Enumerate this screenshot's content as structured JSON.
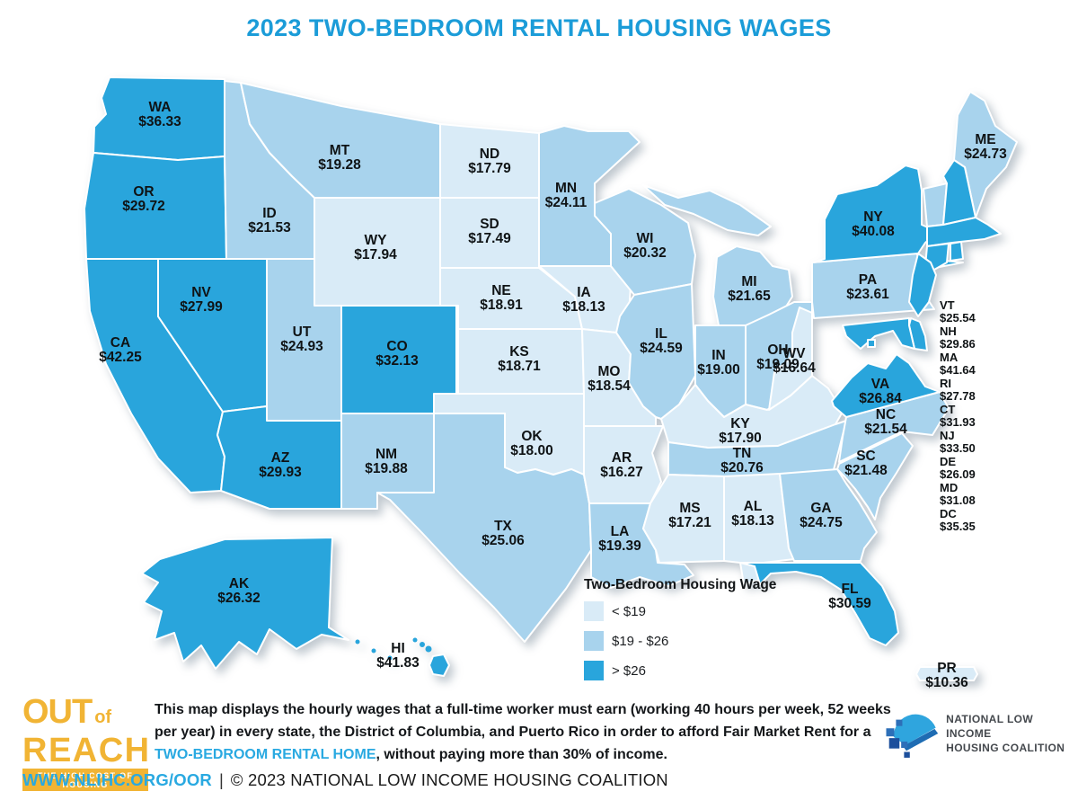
{
  "title": "2023 TWO-BEDROOM RENTAL HOUSING WAGES",
  "colors": {
    "accent_blue": "#1B9CD8",
    "link_blue": "#29A9E1",
    "brand_yellow": "#F1B434",
    "text_dark": "#14171A",
    "nlihc_sky": "#2FA5DE",
    "nlihc_mid_blue": "#2D6FB8",
    "nlihc_navy": "#1C4F9C",
    "nlihc_roof": "#1E6CB3"
  },
  "legend": {
    "title": "Two-Bedroom Housing Wage",
    "classes": [
      {
        "id": "light",
        "label": "< $19",
        "color": "#D9EBF7"
      },
      {
        "id": "medium",
        "label": "$19 - $26",
        "color": "#A8D3ED"
      },
      {
        "id": "dark",
        "label": "> $26",
        "color": "#29A5DC"
      }
    ]
  },
  "map": {
    "states": [
      {
        "abbr": "WA",
        "value": "$36.33",
        "category": "dark"
      },
      {
        "abbr": "OR",
        "value": "$29.72",
        "category": "dark"
      },
      {
        "abbr": "CA",
        "value": "$42.25",
        "category": "dark"
      },
      {
        "abbr": "NV",
        "value": "$27.99",
        "category": "dark"
      },
      {
        "abbr": "ID",
        "value": "$21.53",
        "category": "medium"
      },
      {
        "abbr": "MT",
        "value": "$19.28",
        "category": "medium"
      },
      {
        "abbr": "WY",
        "value": "$17.94",
        "category": "light"
      },
      {
        "abbr": "UT",
        "value": "$24.93",
        "category": "medium"
      },
      {
        "abbr": "CO",
        "value": "$32.13",
        "category": "dark"
      },
      {
        "abbr": "AZ",
        "value": "$29.93",
        "category": "dark"
      },
      {
        "abbr": "NM",
        "value": "$19.88",
        "category": "medium"
      },
      {
        "abbr": "ND",
        "value": "$17.79",
        "category": "light"
      },
      {
        "abbr": "SD",
        "value": "$17.49",
        "category": "light"
      },
      {
        "abbr": "NE",
        "value": "$18.91",
        "category": "light"
      },
      {
        "abbr": "KS",
        "value": "$18.71",
        "category": "light"
      },
      {
        "abbr": "OK",
        "value": "$18.00",
        "category": "light"
      },
      {
        "abbr": "TX",
        "value": "$25.06",
        "category": "medium"
      },
      {
        "abbr": "MN",
        "value": "$24.11",
        "category": "medium"
      },
      {
        "abbr": "IA",
        "value": "$18.13",
        "category": "light"
      },
      {
        "abbr": "MO",
        "value": "$18.54",
        "category": "light"
      },
      {
        "abbr": "AR",
        "value": "$16.27",
        "category": "light"
      },
      {
        "abbr": "LA",
        "value": "$19.39",
        "category": "medium"
      },
      {
        "abbr": "WI",
        "value": "$20.32",
        "category": "medium"
      },
      {
        "abbr": "IL",
        "value": "$24.59",
        "category": "medium"
      },
      {
        "abbr": "MI",
        "value": "$21.65",
        "category": "medium"
      },
      {
        "abbr": "IN",
        "value": "$19.00",
        "category": "medium"
      },
      {
        "abbr": "OH",
        "value": "$19.09",
        "category": "medium"
      },
      {
        "abbr": "KY",
        "value": "$17.90",
        "category": "light"
      },
      {
        "abbr": "TN",
        "value": "$20.76",
        "category": "medium"
      },
      {
        "abbr": "MS",
        "value": "$17.21",
        "category": "light"
      },
      {
        "abbr": "AL",
        "value": "$18.13",
        "category": "light"
      },
      {
        "abbr": "GA",
        "value": "$24.75",
        "category": "medium"
      },
      {
        "abbr": "FL",
        "value": "$30.59",
        "category": "dark"
      },
      {
        "abbr": "SC",
        "value": "$21.48",
        "category": "medium"
      },
      {
        "abbr": "NC",
        "value": "$21.54",
        "category": "medium"
      },
      {
        "abbr": "VA",
        "value": "$26.84",
        "category": "dark"
      },
      {
        "abbr": "WV",
        "value": "$16.64",
        "category": "light"
      },
      {
        "abbr": "PA",
        "value": "$23.61",
        "category": "medium"
      },
      {
        "abbr": "NY",
        "value": "$40.08",
        "category": "dark"
      },
      {
        "abbr": "ME",
        "value": "$24.73",
        "category": "medium"
      },
      {
        "abbr": "VT",
        "value": "$25.54",
        "category": "medium"
      },
      {
        "abbr": "NH",
        "value": "$29.86",
        "category": "dark"
      },
      {
        "abbr": "MA",
        "value": "$41.64",
        "category": "dark"
      },
      {
        "abbr": "RI",
        "value": "$27.78",
        "category": "dark"
      },
      {
        "abbr": "CT",
        "value": "$31.93",
        "category": "dark"
      },
      {
        "abbr": "NJ",
        "value": "$33.50",
        "category": "dark"
      },
      {
        "abbr": "DE",
        "value": "$26.09",
        "category": "dark"
      },
      {
        "abbr": "MD",
        "value": "$31.08",
        "category": "dark"
      },
      {
        "abbr": "DC",
        "value": "$35.35",
        "category": "dark"
      },
      {
        "abbr": "AK",
        "value": "$26.32",
        "category": "dark"
      },
      {
        "abbr": "HI",
        "value": "$41.83",
        "category": "dark"
      },
      {
        "abbr": "PR",
        "value": "$10.36",
        "category": "light"
      }
    ],
    "northeast_list": [
      "VT",
      "NH",
      "MA",
      "RI",
      "CT",
      "NJ",
      "DE",
      "MD",
      "DC"
    ]
  },
  "footer": {
    "brand": {
      "word1": "OUT",
      "word2": "of",
      "word3": "REACH",
      "tagline": "THE HIGH COST OF HOUSING"
    },
    "note": {
      "line1": "This map displays the hourly wages that a full-time worker must earn (working 40 hours per week, 52 weeks",
      "line2": "per year) in every state, the District of Columbia, and Puerto Rico in order to afford Fair Market Rent for a",
      "highlight": "TWO-BEDROOM RENTAL HOME",
      "line3_rest": ", without paying more than 30% of income."
    },
    "org_logo": {
      "line1": "NATIONAL LOW INCOME",
      "line2": "HOUSING COALITION"
    },
    "bottom": {
      "url": "WWW.NLIHC.ORG/OOR",
      "separator": "|",
      "copyright": "© 2023 NATIONAL LOW INCOME HOUSING COALITION"
    }
  }
}
